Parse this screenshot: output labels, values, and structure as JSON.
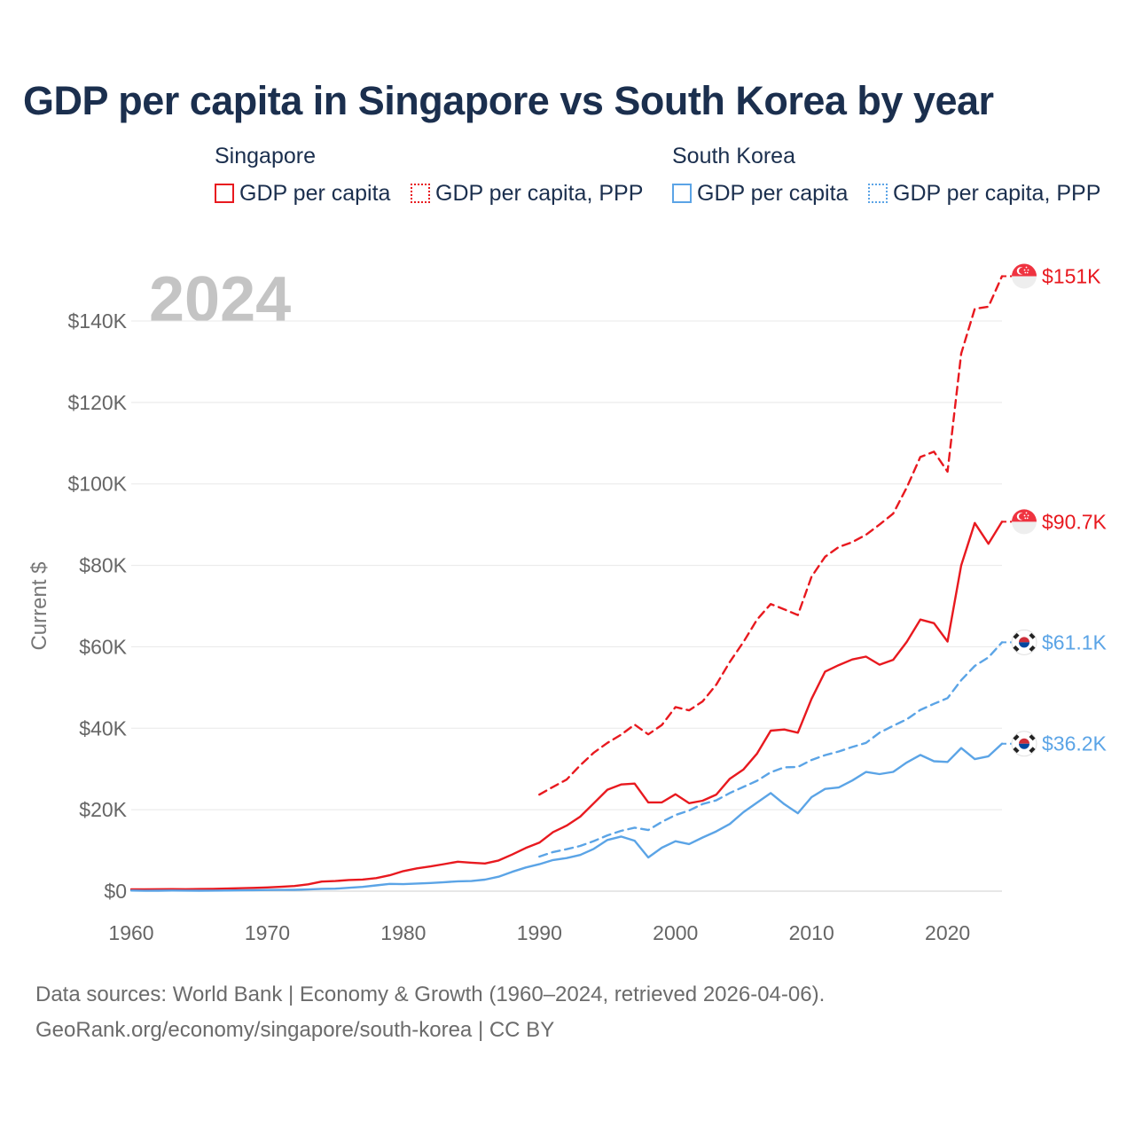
{
  "title": "GDP per capita in Singapore vs South Korea by year",
  "legend": {
    "groups": [
      {
        "name": "Singapore",
        "color": "#e8191f",
        "items": [
          {
            "label": "GDP per capita",
            "style": "solid"
          },
          {
            "label": "GDP per capita, PPP",
            "style": "dotted"
          }
        ]
      },
      {
        "name": "South Korea",
        "color": "#5ba4e6",
        "items": [
          {
            "label": "GDP per capita",
            "style": "solid"
          },
          {
            "label": "GDP per capita, PPP",
            "style": "dotted"
          }
        ]
      }
    ]
  },
  "year_watermark": "2024",
  "chart_data": {
    "type": "line",
    "title": "GDP per capita in Singapore vs South Korea by year",
    "xlabel": "",
    "ylabel": "Current $",
    "xlim": [
      1960,
      2024
    ],
    "ylim": [
      0,
      145000
    ],
    "xticks": [
      1960,
      1970,
      1980,
      1990,
      2000,
      2010,
      2020
    ],
    "yticks": [
      0,
      20000,
      40000,
      60000,
      80000,
      100000,
      120000,
      140000
    ],
    "ytick_labels": [
      "$0",
      "$20K",
      "$40K",
      "$60K",
      "$80K",
      "$100K",
      "$120K",
      "$140K"
    ],
    "grid": true,
    "series": [
      {
        "name": "Singapore GDP per capita",
        "country": "Singapore",
        "color": "#e8191f",
        "dash": "solid",
        "end_label": "$90.7K",
        "flag": "sg",
        "x": [
          1960,
          1961,
          1962,
          1963,
          1964,
          1965,
          1966,
          1967,
          1968,
          1969,
          1970,
          1971,
          1972,
          1973,
          1974,
          1975,
          1976,
          1977,
          1978,
          1979,
          1980,
          1981,
          1982,
          1983,
          1984,
          1985,
          1986,
          1987,
          1988,
          1989,
          1990,
          1991,
          1992,
          1993,
          1994,
          1995,
          1996,
          1997,
          1998,
          1999,
          2000,
          2001,
          2002,
          2003,
          2004,
          2005,
          2006,
          2007,
          2008,
          2009,
          2010,
          2011,
          2012,
          2013,
          2014,
          2015,
          2016,
          2017,
          2018,
          2019,
          2020,
          2021,
          2022,
          2023,
          2024
        ],
        "y": [
          428,
          449,
          472,
          511,
          485,
          517,
          567,
          626,
          708,
          812,
          925,
          1070,
          1264,
          1685,
          2342,
          2490,
          2747,
          2846,
          3194,
          3901,
          4928,
          5596,
          6078,
          6633,
          7228,
          6990,
          6800,
          7538,
          9000,
          10600,
          11900,
          14500,
          16100,
          18300,
          21600,
          24900,
          26200,
          26400,
          21800,
          21800,
          23800,
          21600,
          22200,
          23700,
          27600,
          29900,
          33800,
          39400,
          39700,
          38900,
          47200,
          53900,
          55500,
          56900,
          57600,
          55600,
          56800,
          61200,
          66700,
          65800,
          61300,
          80000,
          90400,
          85300,
          90700
        ]
      },
      {
        "name": "Singapore GDP per capita, PPP",
        "country": "Singapore",
        "color": "#e8191f",
        "dash": "dashed",
        "end_label": "$151K",
        "flag": "sg",
        "x": [
          1990,
          1991,
          1992,
          1993,
          1994,
          1995,
          1996,
          1997,
          1998,
          1999,
          2000,
          2001,
          2002,
          2003,
          2004,
          2005,
          2006,
          2007,
          2008,
          2009,
          2010,
          2011,
          2012,
          2013,
          2014,
          2015,
          2016,
          2017,
          2018,
          2019,
          2020,
          2021,
          2022,
          2023,
          2024
        ],
        "y": [
          23700,
          25600,
          27400,
          30900,
          34000,
          36400,
          38400,
          40900,
          38500,
          40800,
          45200,
          44400,
          46600,
          50700,
          56300,
          61200,
          66700,
          70500,
          69200,
          67800,
          77200,
          82100,
          84500,
          85700,
          87500,
          90000,
          92700,
          99100,
          106600,
          107900,
          103000,
          132000,
          143000,
          143500,
          151000
        ]
      },
      {
        "name": "South Korea GDP per capita",
        "country": "South Korea",
        "color": "#5ba4e6",
        "dash": "solid",
        "end_label": "$36.2K",
        "flag": "kr",
        "x": [
          1960,
          1961,
          1962,
          1963,
          1964,
          1965,
          1966,
          1967,
          1968,
          1969,
          1970,
          1971,
          1972,
          1973,
          1974,
          1975,
          1976,
          1977,
          1978,
          1979,
          1980,
          1981,
          1982,
          1983,
          1984,
          1985,
          1986,
          1987,
          1988,
          1989,
          1990,
          1991,
          1992,
          1993,
          1994,
          1995,
          1996,
          1997,
          1998,
          1999,
          2000,
          2001,
          2002,
          2003,
          2004,
          2005,
          2006,
          2007,
          2008,
          2009,
          2010,
          2011,
          2012,
          2013,
          2014,
          2015,
          2016,
          2017,
          2018,
          2019,
          2020,
          2021,
          2022,
          2023,
          2024
        ],
        "y": [
          158,
          94,
          106,
          146,
          124,
          108,
          133,
          161,
          198,
          243,
          279,
          301,
          324,
          406,
          563,
          617,
          834,
          1055,
          1406,
          1783,
          1715,
          1883,
          1993,
          2199,
          2413,
          2482,
          2835,
          3555,
          4749,
          5818,
          6610,
          7637,
          8127,
          8885,
          10385,
          12565,
          13404,
          12398,
          8282,
          10672,
          12263,
          11563,
          13165,
          14673,
          16496,
          19403,
          21743,
          24086,
          21350,
          19144,
          23087,
          25100,
          25459,
          27180,
          29253,
          28737,
          29274,
          31601,
          33447,
          31902,
          31721,
          35142,
          32423,
          33121,
          36200
        ]
      },
      {
        "name": "South Korea GDP per capita, PPP",
        "country": "South Korea",
        "color": "#5ba4e6",
        "dash": "dashed",
        "end_label": "$61.1K",
        "flag": "kr",
        "x": [
          1990,
          1991,
          1992,
          1993,
          1994,
          1995,
          1996,
          1997,
          1998,
          1999,
          2000,
          2001,
          2002,
          2003,
          2004,
          2005,
          2006,
          2007,
          2008,
          2009,
          2010,
          2011,
          2012,
          2013,
          2014,
          2015,
          2016,
          2017,
          2018,
          2019,
          2020,
          2021,
          2022,
          2023,
          2024
        ],
        "y": [
          8500,
          9600,
          10300,
          11100,
          12300,
          13700,
          14800,
          15600,
          15000,
          17000,
          18700,
          19800,
          21400,
          22300,
          24100,
          25600,
          27100,
          29200,
          30400,
          30500,
          32200,
          33400,
          34300,
          35400,
          36400,
          38900,
          40600,
          42200,
          44500,
          46000,
          47400,
          51800,
          55300,
          57400,
          61100
        ]
      }
    ]
  },
  "sources": {
    "line1": "Data sources: World Bank | Economy & Growth (1960–2024, retrieved 2026-04-06).",
    "line2": "GeoRank.org/economy/singapore/south-korea | CC BY"
  }
}
